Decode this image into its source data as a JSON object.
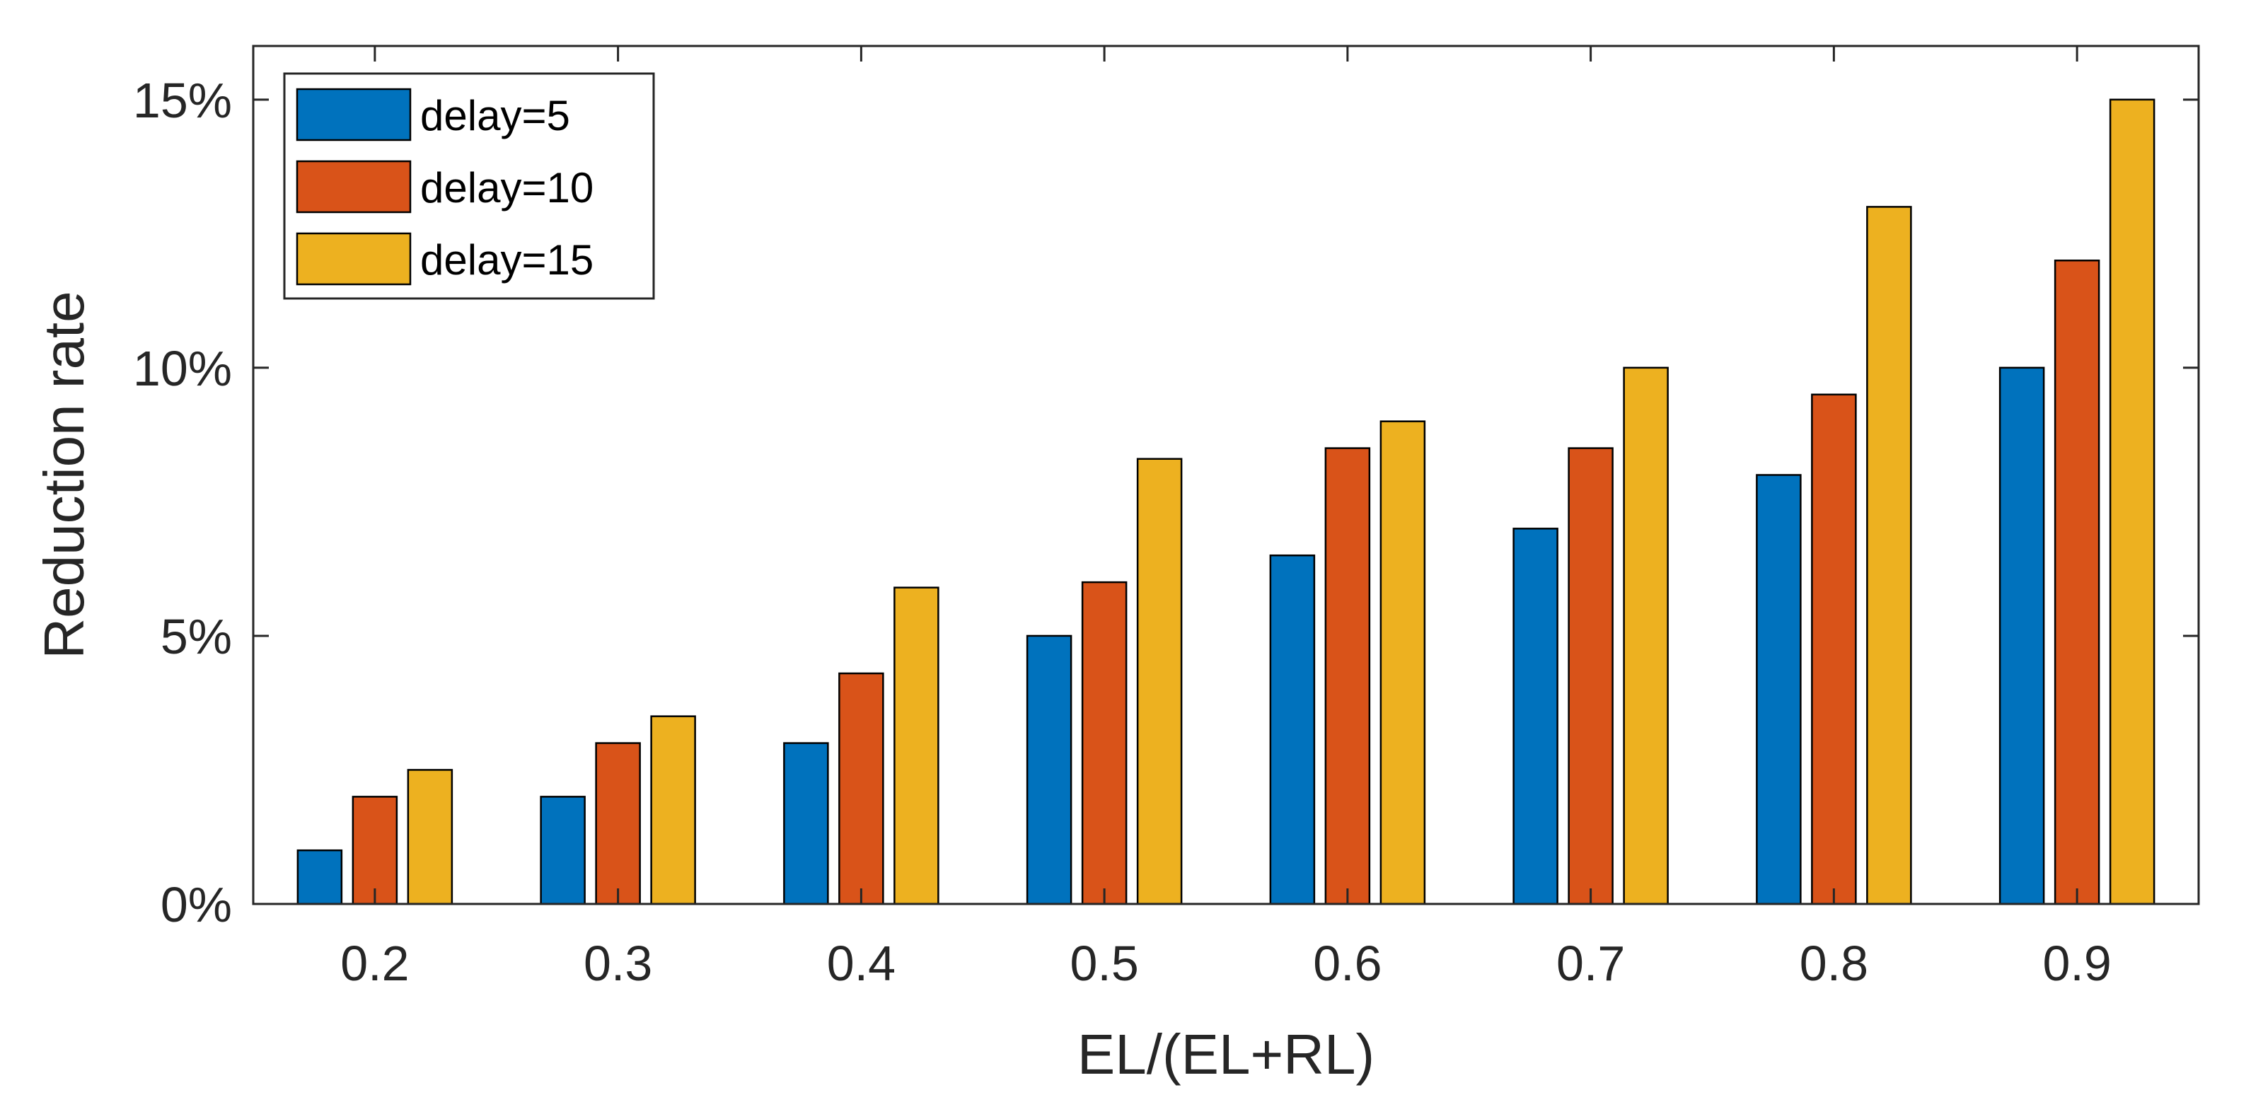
{
  "chart_data": {
    "type": "bar",
    "title": "",
    "xlabel": "EL/(EL+RL)",
    "ylabel": "Reduction rate",
    "categories": [
      "0.2",
      "0.3",
      "0.4",
      "0.5",
      "0.6",
      "0.7",
      "0.8",
      "0.9"
    ],
    "series": [
      {
        "name": "delay=5",
        "color": "#0072BD",
        "values": [
          1.0,
          2.0,
          3.0,
          5.0,
          6.5,
          7.0,
          8.0,
          10.0
        ]
      },
      {
        "name": "delay=10",
        "color": "#D95319",
        "values": [
          2.0,
          3.0,
          4.3,
          6.0,
          8.5,
          8.5,
          9.5,
          12.0
        ]
      },
      {
        "name": "delay=15",
        "color": "#EDB120",
        "values": [
          2.5,
          3.5,
          5.9,
          8.3,
          9.0,
          10.0,
          13.0,
          15.0
        ]
      }
    ],
    "ylim": [
      0,
      16
    ],
    "yticks": [
      0,
      5,
      10,
      15
    ],
    "ytick_labels": [
      "0%",
      "5%",
      "10%",
      "15%"
    ],
    "value_unit": "%",
    "grid": false,
    "legend_position": "top-left"
  }
}
